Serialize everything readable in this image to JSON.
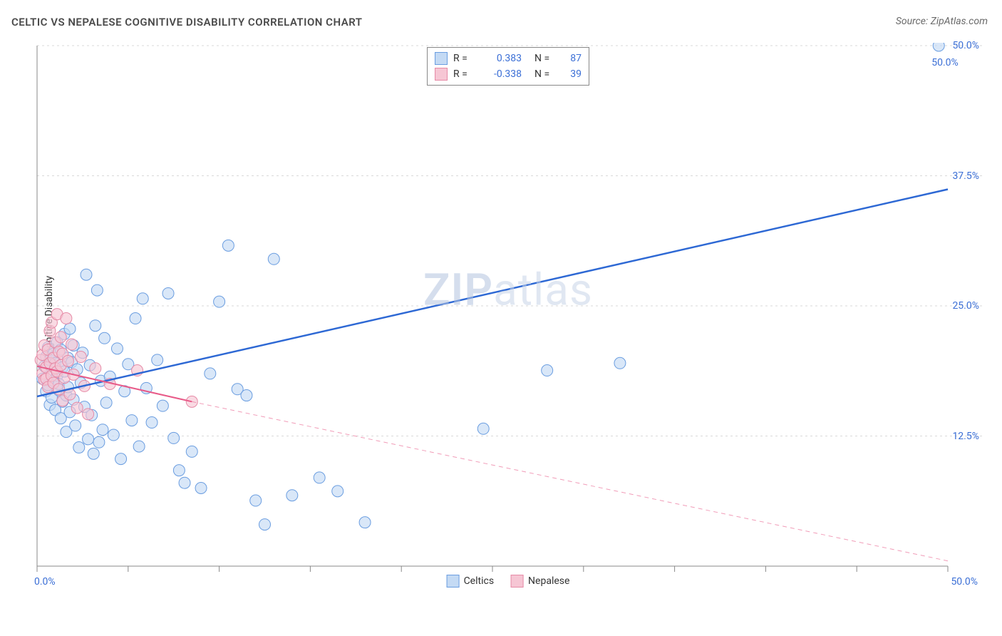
{
  "title": "CELTIC VS NEPALESE COGNITIVE DISABILITY CORRELATION CHART",
  "source": "Source: ZipAtlas.com",
  "ylabel": "Cognitive Disability",
  "watermark_zip": "ZIP",
  "watermark_atlas": "atlas",
  "chart": {
    "type": "scatter",
    "xlim": [
      0,
      50
    ],
    "ylim": [
      0,
      50
    ],
    "x_min_label": "0.0%",
    "x_max_label": "50.0%",
    "y_ticks": [
      {
        "v": 12.5,
        "label": "12.5%"
      },
      {
        "v": 25.0,
        "label": "25.0%"
      },
      {
        "v": 37.5,
        "label": "37.5%"
      },
      {
        "v": 50.0,
        "label": "50.0%"
      }
    ],
    "x_ticks_major": [
      0,
      5,
      10,
      15,
      20,
      25,
      30,
      35,
      40,
      45,
      50
    ],
    "grid_lines_y": [
      12.5,
      25.0,
      37.5,
      50.0
    ],
    "grid_color": "#d9d9d9",
    "axis_color": "#888888",
    "tick_color": "#888888",
    "background_color": "#ffffff",
    "marker_radius": 8,
    "marker_stroke_width": 1,
    "point_label_color": "#3b6fd6",
    "top_right_point_label": "50.0%",
    "series": [
      {
        "name": "Celtics",
        "fill": "#c4daf4",
        "stroke": "#6a9de0",
        "line_color": "#2d68d4",
        "line_width": 2.5,
        "r_label": "R =",
        "r_value": "0.383",
        "n_label": "N =",
        "n_value": "87",
        "r_color": "#3b6fd6",
        "regression": {
          "x1": 0,
          "y1": 16.3,
          "x2": 50,
          "y2": 36.2,
          "dashed": false
        },
        "points": [
          [
            0.3,
            18.0
          ],
          [
            0.4,
            19.2
          ],
          [
            0.5,
            16.8
          ],
          [
            0.5,
            20.1
          ],
          [
            0.6,
            17.4
          ],
          [
            0.6,
            21.0
          ],
          [
            0.7,
            15.5
          ],
          [
            0.7,
            19.8
          ],
          [
            0.8,
            18.6
          ],
          [
            0.8,
            16.2
          ],
          [
            0.9,
            20.4
          ],
          [
            0.9,
            17.8
          ],
          [
            1.0,
            19.5
          ],
          [
            1.0,
            15.0
          ],
          [
            1.1,
            21.5
          ],
          [
            1.1,
            18.3
          ],
          [
            1.2,
            16.9
          ],
          [
            1.2,
            17.5
          ],
          [
            1.3,
            20.8
          ],
          [
            1.3,
            14.2
          ],
          [
            1.4,
            19.1
          ],
          [
            1.4,
            15.8
          ],
          [
            1.5,
            18.7
          ],
          [
            1.5,
            22.3
          ],
          [
            1.6,
            16.4
          ],
          [
            1.6,
            12.9
          ],
          [
            1.7,
            20.0
          ],
          [
            1.7,
            17.2
          ],
          [
            1.8,
            22.8
          ],
          [
            1.8,
            14.8
          ],
          [
            1.9,
            19.6
          ],
          [
            2.0,
            16.0
          ],
          [
            2.0,
            21.2
          ],
          [
            2.1,
            13.5
          ],
          [
            2.2,
            18.9
          ],
          [
            2.3,
            11.4
          ],
          [
            2.4,
            17.6
          ],
          [
            2.5,
            20.5
          ],
          [
            2.6,
            15.3
          ],
          [
            2.7,
            28.0
          ],
          [
            2.8,
            12.2
          ],
          [
            2.9,
            19.3
          ],
          [
            3.0,
            14.5
          ],
          [
            3.1,
            10.8
          ],
          [
            3.2,
            23.1
          ],
          [
            3.3,
            26.5
          ],
          [
            3.4,
            11.9
          ],
          [
            3.5,
            17.8
          ],
          [
            3.6,
            13.1
          ],
          [
            3.7,
            21.9
          ],
          [
            3.8,
            15.7
          ],
          [
            4.0,
            18.2
          ],
          [
            4.2,
            12.6
          ],
          [
            4.4,
            20.9
          ],
          [
            4.6,
            10.3
          ],
          [
            4.8,
            16.8
          ],
          [
            5.0,
            19.4
          ],
          [
            5.2,
            14.0
          ],
          [
            5.4,
            23.8
          ],
          [
            5.6,
            11.5
          ],
          [
            5.8,
            25.7
          ],
          [
            6.0,
            17.1
          ],
          [
            6.3,
            13.8
          ],
          [
            6.6,
            19.8
          ],
          [
            6.9,
            15.4
          ],
          [
            7.2,
            26.2
          ],
          [
            7.5,
            12.3
          ],
          [
            7.8,
            9.2
          ],
          [
            8.1,
            8.0
          ],
          [
            8.5,
            11.0
          ],
          [
            9.0,
            7.5
          ],
          [
            9.5,
            18.5
          ],
          [
            10.0,
            25.4
          ],
          [
            10.5,
            30.8
          ],
          [
            11.0,
            17.0
          ],
          [
            11.5,
            16.4
          ],
          [
            12.0,
            6.3
          ],
          [
            12.5,
            4.0
          ],
          [
            13.0,
            29.5
          ],
          [
            14.0,
            6.8
          ],
          [
            15.5,
            8.5
          ],
          [
            16.5,
            7.2
          ],
          [
            18.0,
            4.2
          ],
          [
            24.5,
            13.2
          ],
          [
            28.0,
            18.8
          ],
          [
            32.0,
            19.5
          ],
          [
            49.5,
            50.0
          ]
        ]
      },
      {
        "name": "Nepalese",
        "fill": "#f6c6d4",
        "stroke": "#e68aa6",
        "line_color": "#e85a88",
        "line_width": 2,
        "r_label": "R =",
        "r_value": "-0.338",
        "n_label": "N =",
        "n_value": "39",
        "r_color": "#3b6fd6",
        "regression": {
          "x1": 0,
          "y1": 19.2,
          "x2": 8.5,
          "y2": 15.8,
          "dashed": false
        },
        "regression_ext": {
          "x1": 8.5,
          "y1": 15.8,
          "x2": 50,
          "y2": 0.5,
          "dashed": true
        },
        "points": [
          [
            0.2,
            19.8
          ],
          [
            0.3,
            18.5
          ],
          [
            0.3,
            20.3
          ],
          [
            0.4,
            17.9
          ],
          [
            0.4,
            21.2
          ],
          [
            0.5,
            19.1
          ],
          [
            0.5,
            18.0
          ],
          [
            0.6,
            20.8
          ],
          [
            0.6,
            17.2
          ],
          [
            0.7,
            22.6
          ],
          [
            0.7,
            19.5
          ],
          [
            0.8,
            18.3
          ],
          [
            0.8,
            23.4
          ],
          [
            0.9,
            20.0
          ],
          [
            0.9,
            17.6
          ],
          [
            1.0,
            21.5
          ],
          [
            1.0,
            19.0
          ],
          [
            1.1,
            24.2
          ],
          [
            1.1,
            18.7
          ],
          [
            1.2,
            20.6
          ],
          [
            1.2,
            17.0
          ],
          [
            1.3,
            22.0
          ],
          [
            1.3,
            19.3
          ],
          [
            1.4,
            15.9
          ],
          [
            1.4,
            20.4
          ],
          [
            1.5,
            18.1
          ],
          [
            1.6,
            23.8
          ],
          [
            1.7,
            19.7
          ],
          [
            1.8,
            16.5
          ],
          [
            1.9,
            21.3
          ],
          [
            2.0,
            18.4
          ],
          [
            2.2,
            15.2
          ],
          [
            2.4,
            20.1
          ],
          [
            2.6,
            17.3
          ],
          [
            2.8,
            14.6
          ],
          [
            3.2,
            19.0
          ],
          [
            4.0,
            17.5
          ],
          [
            5.5,
            18.8
          ],
          [
            8.5,
            15.8
          ]
        ]
      }
    ],
    "legend_bottom": [
      {
        "label": "Celtics",
        "fill": "#c4daf4",
        "stroke": "#6a9de0"
      },
      {
        "label": "Nepalese",
        "fill": "#f6c6d4",
        "stroke": "#e68aa6"
      }
    ]
  }
}
